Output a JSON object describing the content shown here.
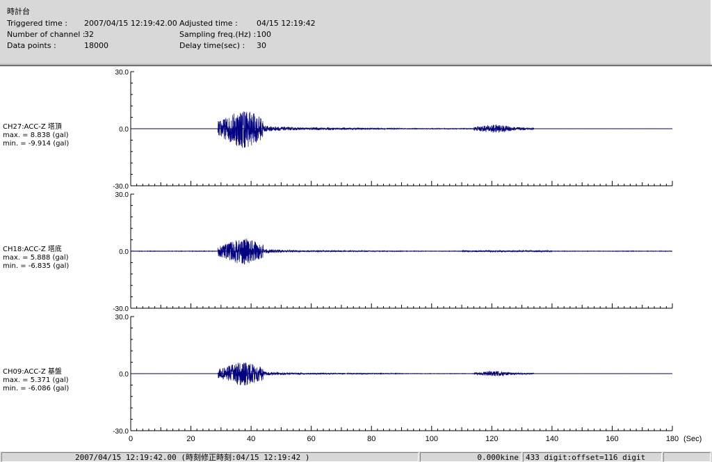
{
  "header": {
    "title": "時計台",
    "triggered_label": "Triggered time :",
    "triggered_value": "2007/04/15 12:19:42.00",
    "channels_label": "Number of channel :",
    "channels_value": "32",
    "datapoints_label": "Data points :",
    "datapoints_value": "18000",
    "adjusted_label": "Adjusted time :",
    "adjusted_value": "04/15 12:19:42",
    "sampling_label": "Sampling freq.(Hz) :",
    "sampling_value": "100",
    "delay_label": "Delay time(sec) :",
    "delay_value": "30"
  },
  "channels": [
    {
      "name": "CH27:ACC-Z 塔頂",
      "max": "max. = 8.838 (gal)",
      "min": "min. = -9.914 (gal)"
    },
    {
      "name": "CH18:ACC-Z 塔底",
      "max": "max. = 5.888 (gal)",
      "min": "min. = -6.835 (gal)"
    },
    {
      "name": "CH09:ACC-Z 基盤",
      "max": "max. = 5.371 (gal)",
      "min": "min. = -6.086 (gal)"
    }
  ],
  "chart_data": {
    "type": "line",
    "x_unit": "(Sec)",
    "xlim": [
      0,
      180
    ],
    "x_ticks": [
      "0",
      "20",
      "40",
      "60",
      "80",
      "100",
      "120",
      "140",
      "160",
      "180"
    ],
    "y_ticks": [
      "30.0",
      "0.0",
      "-30.0"
    ],
    "ylim": [
      -30,
      30
    ],
    "series": [
      {
        "channel": "CH27:ACC-Z 塔頂",
        "max": 8.838,
        "min": -9.914
      },
      {
        "channel": "CH18:ACC-Z 塔底",
        "max": 5.888,
        "min": -6.835
      },
      {
        "channel": "CH09:ACC-Z 基盤",
        "max": 5.371,
        "min": -6.086
      }
    ],
    "trace_color": "#000080"
  },
  "statusbar": {
    "time_text": "2007/04/15 12:19:42.00  (時刻修正時刻:04/15 12:19:42  )",
    "kine_text": "0.000kine",
    "digit_text": "433 digit:offset=116 digit",
    "extra_text": ""
  }
}
